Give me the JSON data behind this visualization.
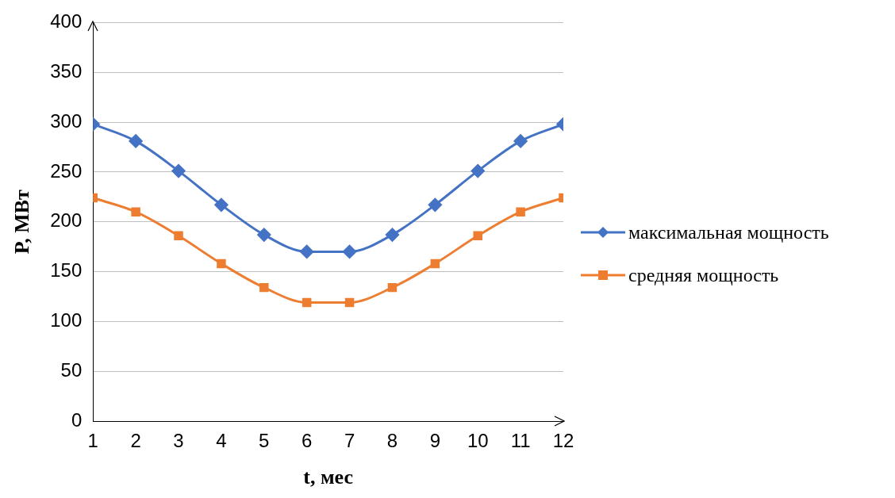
{
  "chart_data": {
    "type": "line",
    "xlabel": "t, мес",
    "ylabel": "P, МВт",
    "x": [
      1,
      2,
      3,
      4,
      5,
      6,
      7,
      8,
      9,
      10,
      11,
      12
    ],
    "xlim": [
      1,
      12
    ],
    "xticks": [
      1,
      2,
      3,
      4,
      5,
      6,
      7,
      8,
      9,
      10,
      11,
      12
    ],
    "series": [
      {
        "name": "максимальная мощность",
        "color": "#4472c4",
        "marker": "diamond",
        "values": [
          298,
          281,
          251,
          217,
          187,
          170,
          170,
          187,
          217,
          251,
          281,
          298
        ]
      },
      {
        "name": "средняя мощность",
        "color": "#ed7d31",
        "marker": "square",
        "values": [
          224,
          210,
          186,
          158,
          134,
          119,
          119,
          134,
          158,
          186,
          210,
          224
        ]
      }
    ],
    "ylim": [
      0,
      400
    ],
    "yticks": [
      0,
      50,
      100,
      150,
      200,
      250,
      300,
      350,
      400
    ],
    "grid": "y",
    "legend": "right"
  }
}
